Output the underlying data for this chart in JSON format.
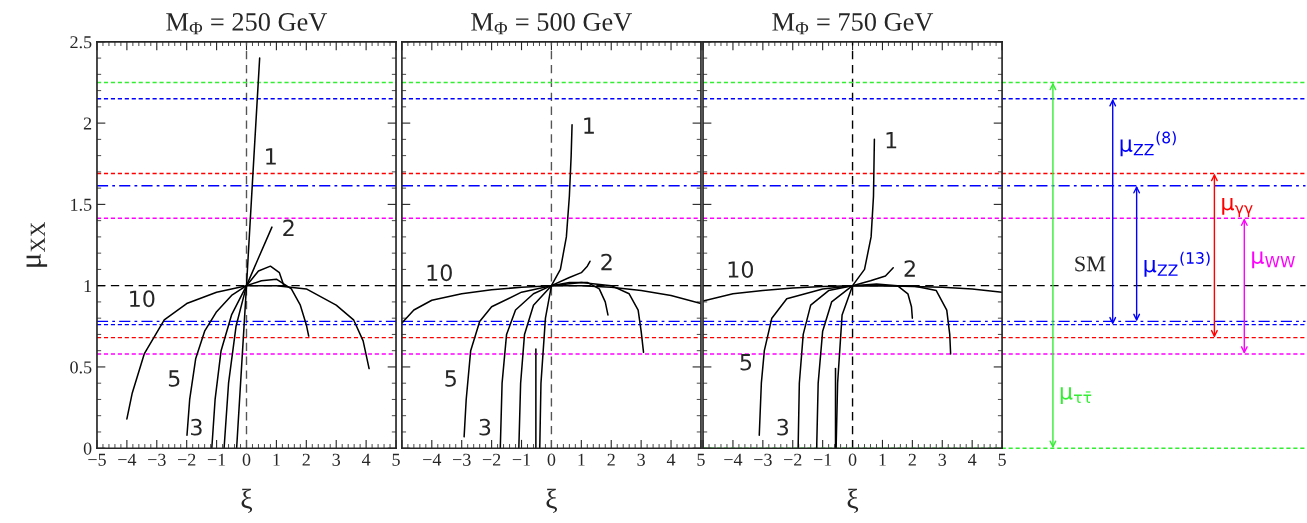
{
  "chart_data": [
    {
      "type": "line",
      "title": "M$_{Φ}$ = 250 GeV",
      "xlabel": "ξ",
      "ylabel": "μ$_{XX}$",
      "xlim": [
        -5,
        5
      ],
      "ylim": [
        0,
        2.5
      ],
      "xticks": [
        {
          "value": -5,
          "label": "−5"
        },
        {
          "value": -4,
          "label": "−4"
        },
        {
          "value": -3,
          "label": "−3"
        },
        {
          "value": -2,
          "label": "−2"
        },
        {
          "value": -1,
          "label": "−1"
        },
        0,
        1,
        2,
        3,
        4,
        5
      ],
      "yticks": [
        0,
        0.5,
        1,
        1.5,
        2,
        2.5
      ],
      "series": [
        {
          "color": "#000000",
          "x": [
            -4.0,
            -3.82,
            -3.42,
            -2.75,
            -2,
            -1,
            0,
            1,
            2,
            3,
            3.58,
            3.9,
            4.1
          ],
          "values": [
            0.18,
            0.34,
            0.58,
            0.79,
            0.89,
            0.96,
            1,
            1.0,
            0.98,
            0.88,
            0.79,
            0.66,
            0.49
          ]
        },
        {
          "color": "#000000",
          "x": [
            -1.99,
            -1.9,
            -1.7,
            -1.4,
            -1.0,
            -0.5,
            0,
            0.5,
            1.0,
            1.5,
            1.8,
            2.0,
            2.08
          ],
          "values": [
            0.08,
            0.3,
            0.55,
            0.72,
            0.84,
            0.94,
            1,
            1.03,
            1.04,
            0.98,
            0.88,
            0.76,
            0.69
          ]
        },
        {
          "color": "#000000",
          "x": [
            -1.16,
            -1.05,
            -0.85,
            -0.5,
            0,
            0.4,
            0.8,
            1.1,
            1.25
          ],
          "values": [
            0,
            0.3,
            0.6,
            0.82,
            1,
            1.09,
            1.12,
            1.08,
            1.0
          ]
        },
        {
          "color": "#000000",
          "x": [
            -0.75,
            -0.6,
            -0.35,
            0,
            0.4,
            0.85
          ],
          "values": [
            0,
            0.4,
            0.75,
            1,
            1.17,
            1.36
          ]
        },
        {
          "color": "#000000",
          "x": [
            -0.33,
            0,
            0.25,
            0.44
          ],
          "values": [
            0,
            1,
            1.8,
            2.4
          ]
        }
      ],
      "ref_lines": [
        {
          "axis": "x",
          "value": 0,
          "color": "#555555",
          "line_style": "dashed"
        },
        {
          "axis": "y",
          "value": 1,
          "color": "#000000",
          "line_style": "dashed"
        },
        {
          "axis": "y",
          "value": 2.25,
          "color": "#33ee33",
          "line_style": "dotted"
        },
        {
          "axis": "y",
          "value": 2.15,
          "color": "#0000ff",
          "line_style": "dotted"
        },
        {
          "axis": "y",
          "value": 0.76,
          "color": "#0000ff",
          "line_style": "dotted"
        },
        {
          "axis": "y",
          "value": 1.615,
          "color": "#0000ff",
          "line_style": "dashdot"
        },
        {
          "axis": "y",
          "value": 0.78,
          "color": "#0000ff",
          "line_style": "dashdot"
        },
        {
          "axis": "y",
          "value": 1.69,
          "color": "#ff0000",
          "line_style": "dotted"
        },
        {
          "axis": "y",
          "value": 0.68,
          "color": "#ff0000",
          "line_style": "dotted"
        },
        {
          "axis": "y",
          "value": 1.415,
          "color": "#ff00ff",
          "line_style": "dotted"
        },
        {
          "axis": "y",
          "value": 0.58,
          "color": "#ff00ff",
          "line_style": "dotted"
        }
      ],
      "annotations": [
        {
          "text": "1",
          "x": 0.25,
          "y": 1.8
        },
        {
          "text": "2",
          "x": 0.85,
          "y": 1.36
        },
        {
          "text": "10",
          "x": -2.75,
          "y": 0.79
        },
        {
          "text": "5",
          "x": -1.9,
          "y": 0.3
        },
        {
          "text": "3",
          "x": -1.16,
          "y": 0
        }
      ]
    },
    {
      "type": "line",
      "title": "M$_{Φ}$ = 500 GeV",
      "xlabel": "ξ",
      "xlim": [
        -5,
        5
      ],
      "ylim": [
        0,
        2.5
      ],
      "tick_labels": "x",
      "xticks": [
        {
          "value": -5,
          "label": null
        },
        {
          "value": -4,
          "label": "−4"
        },
        {
          "value": -3,
          "label": "−3"
        },
        {
          "value": -2,
          "label": "−2"
        },
        {
          "value": -1,
          "label": "−1"
        },
        0,
        1,
        2,
        3,
        4,
        5
      ],
      "yticks": [
        0,
        0.5,
        1,
        1.5,
        2,
        2.5
      ],
      "series": [
        {
          "color": "#000000",
          "x": [
            -5,
            -4.6,
            -4,
            -3,
            -2,
            -1,
            0,
            1,
            2,
            3,
            4,
            5
          ],
          "values": [
            0.77,
            0.85,
            0.91,
            0.95,
            0.975,
            0.99,
            1,
            1.0,
            0.99,
            0.97,
            0.94,
            0.89
          ]
        },
        {
          "color": "#000000",
          "x": [
            -2.92,
            -2.85,
            -2.7,
            -2.4,
            -2,
            -1,
            0,
            1,
            2,
            2.6,
            2.9,
            3.0,
            3.08
          ],
          "values": [
            0.07,
            0.3,
            0.6,
            0.78,
            0.87,
            0.96,
            1,
            1.02,
            1.0,
            0.95,
            0.85,
            0.72,
            0.59
          ]
        },
        {
          "color": "#000000",
          "x": [
            -1.71,
            -1.65,
            -1.5,
            -1.2,
            -0.6,
            0,
            0.6,
            1.2,
            1.6,
            1.8,
            1.89
          ],
          "values": [
            0,
            0.4,
            0.7,
            0.85,
            0.95,
            1,
            1.02,
            1.02,
            0.98,
            0.9,
            0.82
          ]
        },
        {
          "color": "#000000",
          "x": [
            -1.09,
            -1.03,
            -0.9,
            -0.6,
            0,
            0.6,
            1.0,
            1.2,
            1.29
          ],
          "values": [
            0,
            0.4,
            0.7,
            0.88,
            1,
            1.05,
            1.08,
            1.12,
            1.15
          ]
        },
        {
          "color": "#000000",
          "x": [
            -0.39,
            -0.35,
            -0.2,
            0,
            0.3,
            0.5,
            0.6,
            0.66,
            0.69
          ],
          "values": [
            0,
            0.4,
            0.8,
            1,
            1.1,
            1.3,
            1.55,
            1.8,
            1.99
          ]
        },
        {
          "color": "#000000",
          "x": [
            -0.52,
            -0.52
          ],
          "values": [
            0,
            0.61
          ]
        }
      ],
      "ref_lines": [
        {
          "axis": "x",
          "value": 0,
          "color": "#555555",
          "line_style": "dashed"
        },
        {
          "axis": "y",
          "value": 1,
          "color": "#000000",
          "line_style": "dashed"
        },
        {
          "axis": "y",
          "value": 2.25,
          "color": "#33ee33",
          "line_style": "dotted"
        },
        {
          "axis": "y",
          "value": 2.15,
          "color": "#0000ff",
          "line_style": "dotted"
        },
        {
          "axis": "y",
          "value": 0.76,
          "color": "#0000ff",
          "line_style": "dotted"
        },
        {
          "axis": "y",
          "value": 1.615,
          "color": "#0000ff",
          "line_style": "dashdot"
        },
        {
          "axis": "y",
          "value": 0.78,
          "color": "#0000ff",
          "line_style": "dashdot"
        },
        {
          "axis": "y",
          "value": 1.69,
          "color": "#ff0000",
          "line_style": "dotted"
        },
        {
          "axis": "y",
          "value": 0.68,
          "color": "#ff0000",
          "line_style": "dotted"
        },
        {
          "axis": "y",
          "value": 1.415,
          "color": "#ff00ff",
          "line_style": "dotted"
        },
        {
          "axis": "y",
          "value": 0.58,
          "color": "#ff00ff",
          "line_style": "dotted"
        }
      ],
      "annotations": [
        {
          "text": "1",
          "x": 0.69,
          "y": 1.99
        },
        {
          "text": "2",
          "x": 1.29,
          "y": 1.15
        },
        {
          "text": "10",
          "x": -3,
          "y": 0.95
        },
        {
          "text": "5",
          "x": -2.85,
          "y": 0.3
        },
        {
          "text": "3",
          "x": -1.71,
          "y": 0
        }
      ]
    },
    {
      "type": "line",
      "title": "M$_{Φ}$ = 750 GeV",
      "xlabel": "ξ",
      "xlim": [
        -5,
        5
      ],
      "ylim": [
        0,
        2.5
      ],
      "tick_labels": "x",
      "xticks": [
        {
          "value": -5,
          "label": null
        },
        {
          "value": -4,
          "label": "−4"
        },
        {
          "value": -3,
          "label": "−3"
        },
        {
          "value": -2,
          "label": "−2"
        },
        {
          "value": -1,
          "label": "−1"
        },
        0,
        1,
        2,
        3,
        4,
        5
      ],
      "yticks": [
        0,
        0.5,
        1,
        1.5,
        2,
        2.5
      ],
      "series": [
        {
          "color": "#000000",
          "x": [
            -5,
            -4,
            -3,
            -2,
            -1,
            0,
            1,
            2,
            3,
            4,
            5
          ],
          "values": [
            0.905,
            0.95,
            0.97,
            0.985,
            0.995,
            1,
            1.0,
            0.995,
            0.99,
            0.98,
            0.96
          ]
        },
        {
          "color": "#000000",
          "x": [
            -3.12,
            -3.05,
            -2.95,
            -2.7,
            -2.2,
            -1,
            0,
            1,
            2,
            2.8,
            3.15,
            3.25,
            3.28
          ],
          "values": [
            0.08,
            0.4,
            0.6,
            0.8,
            0.92,
            0.98,
            1,
            1.0,
            1.0,
            0.97,
            0.85,
            0.7,
            0.58
          ]
        },
        {
          "color": "#000000",
          "x": [
            -1.82,
            -1.78,
            -1.65,
            -1.4,
            -0.8,
            0,
            0.8,
            1.5,
            1.85,
            1.97,
            2.0
          ],
          "values": [
            0,
            0.4,
            0.7,
            0.88,
            0.97,
            1,
            1.01,
            1.0,
            0.95,
            0.87,
            0.8
          ]
        },
        {
          "color": "#000000",
          "x": [
            -1.2,
            -1.15,
            -1.0,
            -0.7,
            0,
            0.6,
            1.1,
            1.36
          ],
          "values": [
            0,
            0.4,
            0.72,
            0.9,
            1,
            1.03,
            1.06,
            1.11
          ]
        },
        {
          "color": "#000000",
          "x": [
            -0.55,
            -0.5,
            -0.35,
            0,
            0.4,
            0.62,
            0.7,
            0.73
          ],
          "values": [
            0,
            0.4,
            0.82,
            1,
            1.1,
            1.3,
            1.55,
            1.9
          ]
        },
        {
          "color": "#000000",
          "x": [
            -0.57,
            -0.57
          ],
          "values": [
            0,
            0.49
          ]
        }
      ],
      "ref_lines": [
        {
          "axis": "x",
          "value": 0,
          "color": "#000000",
          "line_style": "dashed"
        },
        {
          "axis": "y",
          "value": 1,
          "color": "#000000",
          "line_style": "dashed",
          "label": "SM"
        },
        {
          "axis": "y",
          "value": 2.25,
          "color": "#33ee33",
          "line_style": "dotted"
        },
        {
          "axis": "y",
          "value": 0,
          "color": "#33ee33",
          "line_style": "dotted"
        },
        {
          "axis": "y",
          "value": 2.15,
          "color": "#0000ff",
          "line_style": "dotted"
        },
        {
          "axis": "y",
          "value": 0.76,
          "color": "#0000ff",
          "line_style": "dotted"
        },
        {
          "axis": "y",
          "value": 1.615,
          "color": "#0000ff",
          "line_style": "dashdot"
        },
        {
          "axis": "y",
          "value": 0.78,
          "color": "#0000ff",
          "line_style": "dashdot"
        },
        {
          "axis": "y",
          "value": 1.69,
          "color": "#ff0000",
          "line_style": "dotted"
        },
        {
          "axis": "y",
          "value": 0.68,
          "color": "#ff0000",
          "line_style": "dotted"
        },
        {
          "axis": "y",
          "value": 1.415,
          "color": "#ff00ff",
          "line_style": "dotted"
        },
        {
          "axis": "y",
          "value": 0.58,
          "color": "#ff00ff",
          "line_style": "dotted"
        }
      ],
      "annotations": [
        {
          "text": "1",
          "x": 0.73,
          "y": 1.9
        },
        {
          "text": "2",
          "x": 1.36,
          "y": 1.11
        },
        {
          "text": "10",
          "x": -3,
          "y": 0.97
        },
        {
          "text": "5",
          "x": -3.05,
          "y": 0.4
        },
        {
          "text": "3",
          "x": -1.82,
          "y": 0
        },
        {
          "text": "μ$_{ττ̄}$",
          "y": 0
        },
        {
          "text": "μ$_{ZZ}$$^{(8)}$",
          "y": 2.15
        },
        {
          "text": "μ$_{ZZ}$$^{(13)}$",
          "y": 1.615
        },
        {
          "text": "μ$_{γγ}$",
          "y": 1.69
        },
        {
          "text": "μ$_{WW}$",
          "y": 1.415
        }
      ]
    }
  ]
}
